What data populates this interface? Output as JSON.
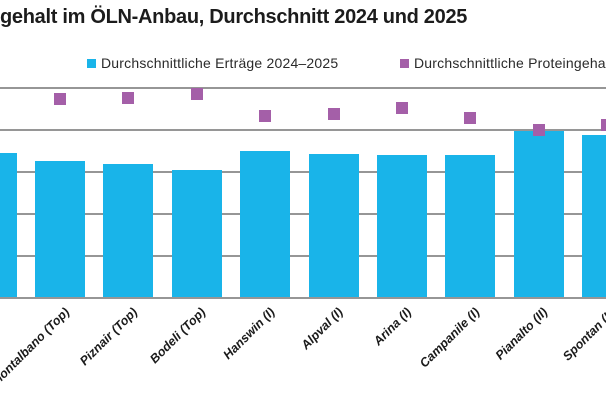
{
  "title": "gehalt im ÖLN-Anbau, Durchschnitt 2024 und 2025",
  "legend": {
    "series1": "Durchschnittliche Erträge 2024–2025",
    "series2": "Durchschnittliche Proteingehalt"
  },
  "colors": {
    "bar": "#19B4E9",
    "marker": "#A45FA8",
    "grid": "#969696",
    "text": "#1A1A1A"
  },
  "chart_data": {
    "type": "bar",
    "title": "gehalt im ÖLN-Anbau, Durchschnitt 2024 und 2025",
    "categories": [
      "",
      "Montalbano (Top)",
      "Piznair (Top)",
      "Bodeli (Top)",
      "Hanswin (I)",
      "Alpval (I)",
      "Arina (I)",
      "Campanile (I)",
      "Pianalto (II)",
      "Spontan (II)"
    ],
    "series": [
      {
        "name": "Durchschnittliche Erträge 2024–2025",
        "type": "bar",
        "values": [
          3.45,
          3.26,
          3.19,
          3.05,
          3.5,
          3.43,
          3.4,
          3.4,
          3.98,
          3.88
        ]
      },
      {
        "name": "Durchschnittliche Proteingehalt",
        "type": "scatter",
        "values": [
          null,
          4.73,
          4.76,
          4.86,
          4.33,
          4.38,
          4.52,
          4.29,
          4.0,
          4.12
        ]
      }
    ],
    "ylim": [
      0,
      5
    ],
    "grid": true,
    "legend_position": "top",
    "axis_note": "Y-axis tick labels cropped out of frame; values expressed in gridline units (1 unit = one gridline interval). First bar and last column are partially visible at the crop edges."
  }
}
